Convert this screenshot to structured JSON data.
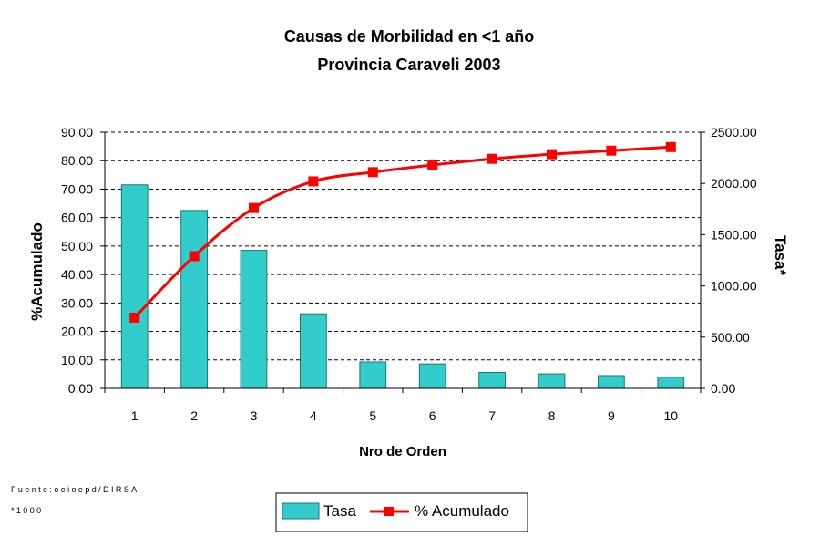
{
  "chart_data": {
    "type": "bar",
    "title": "Causas de Morbilidad en <1 año",
    "subtitle": "Provincia Caraveli 2003",
    "xlabel": "Nro de Orden",
    "ylabel_left": "%Acumulado",
    "ylabel_right": "Tasa*",
    "categories": [
      "1",
      "2",
      "3",
      "4",
      "5",
      "6",
      "7",
      "8",
      "9",
      "10"
    ],
    "left_axis": {
      "min": 0,
      "max": 90,
      "ticks": [
        "0.00",
        "10.00",
        "20.00",
        "30.00",
        "40.00",
        "50.00",
        "60.00",
        "70.00",
        "80.00",
        "90.00"
      ]
    },
    "right_axis": {
      "min": 0,
      "max": 2500,
      "ticks": [
        "0.00",
        "500.00",
        "1000.00",
        "1500.00",
        "2000.00",
        "2500.00"
      ]
    },
    "series": [
      {
        "name": "Tasa",
        "type": "bar",
        "axis": "left",
        "color": "#33cccc",
        "values": [
          71.5,
          62.5,
          48.5,
          26.2,
          9.3,
          8.6,
          5.6,
          5.1,
          4.5,
          3.9
        ]
      },
      {
        "name": "% Acumulado",
        "type": "line",
        "axis": "right",
        "color": "#ff0000",
        "values": [
          690,
          1290,
          1760,
          2020,
          2110,
          2180,
          2240,
          2285,
          2320,
          2355
        ]
      }
    ],
    "grid": true,
    "legend_position": "bottom-center"
  },
  "footnotes": {
    "source": "Fuente:oeioepd/DIRSA",
    "note": "*1000"
  }
}
